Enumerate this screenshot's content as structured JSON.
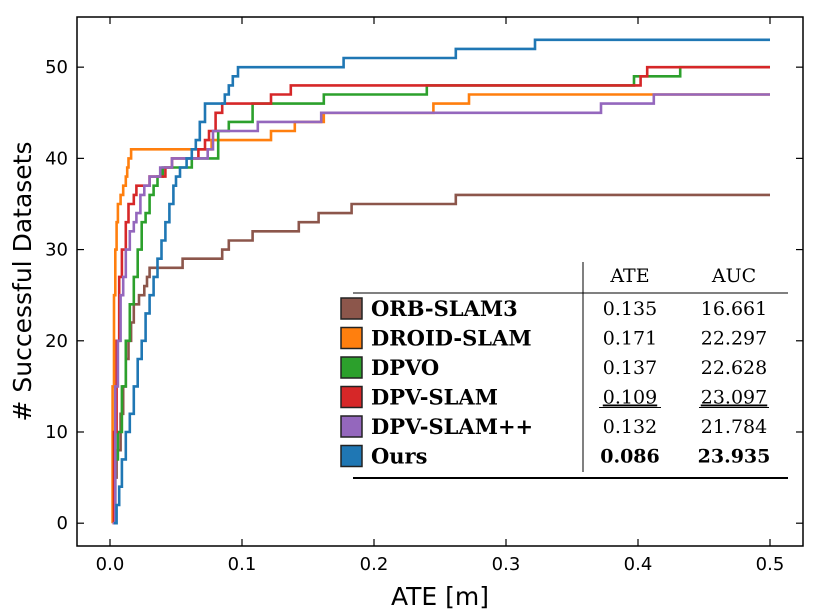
{
  "chart_data": {
    "type": "line",
    "step": true,
    "xlabel": "ATE [m]",
    "ylabel": "# Successful Datasets",
    "xlim": [
      -0.025,
      0.525
    ],
    "ylim": [
      -2.5,
      55.5
    ],
    "xticks": [
      "0.0",
      "0.1",
      "0.2",
      "0.3",
      "0.4",
      "0.5"
    ],
    "yticks": [
      "0",
      "10",
      "20",
      "30",
      "40",
      "50"
    ],
    "grid": false,
    "legend_position": "lower-right",
    "table": {
      "col_headers": [
        "ATE",
        "AUC"
      ]
    },
    "series": [
      {
        "name": "ORB-SLAM3",
        "color": "#8c564b",
        "ate": "0.135",
        "auc": "16.661",
        "ate_style": "normal",
        "auc_style": "normal",
        "points": [
          [
            0.002,
            0
          ],
          [
            0.003,
            5
          ],
          [
            0.005,
            8
          ],
          [
            0.008,
            12
          ],
          [
            0.01,
            15
          ],
          [
            0.012,
            18
          ],
          [
            0.014,
            20
          ],
          [
            0.016,
            22
          ],
          [
            0.018,
            24
          ],
          [
            0.022,
            25
          ],
          [
            0.026,
            26
          ],
          [
            0.028,
            27
          ],
          [
            0.03,
            28
          ],
          [
            0.05,
            28
          ],
          [
            0.055,
            29
          ],
          [
            0.08,
            29
          ],
          [
            0.085,
            30
          ],
          [
            0.09,
            31
          ],
          [
            0.105,
            31
          ],
          [
            0.108,
            32
          ],
          [
            0.14,
            32
          ],
          [
            0.143,
            33
          ],
          [
            0.155,
            33
          ],
          [
            0.158,
            34
          ],
          [
            0.18,
            34
          ],
          [
            0.183,
            35
          ],
          [
            0.26,
            35
          ],
          [
            0.262,
            36
          ],
          [
            0.5,
            36
          ]
        ]
      },
      {
        "name": "DROID-SLAM",
        "color": "#ff7f0e",
        "ate": "0.171",
        "auc": "22.297",
        "ate_style": "normal",
        "auc_style": "normal",
        "points": [
          [
            0.002,
            0
          ],
          [
            0.002,
            15
          ],
          [
            0.003,
            25
          ],
          [
            0.004,
            30
          ],
          [
            0.005,
            33
          ],
          [
            0.006,
            35
          ],
          [
            0.008,
            36
          ],
          [
            0.01,
            37
          ],
          [
            0.012,
            38
          ],
          [
            0.013,
            39
          ],
          [
            0.014,
            40
          ],
          [
            0.016,
            41
          ],
          [
            0.075,
            41
          ],
          [
            0.077,
            42
          ],
          [
            0.12,
            42
          ],
          [
            0.122,
            43
          ],
          [
            0.138,
            43
          ],
          [
            0.14,
            44
          ],
          [
            0.16,
            44
          ],
          [
            0.162,
            45
          ],
          [
            0.243,
            45
          ],
          [
            0.245,
            46
          ],
          [
            0.27,
            46
          ],
          [
            0.272,
            47
          ],
          [
            0.5,
            47
          ]
        ]
      },
      {
        "name": "DPVO",
        "color": "#2ca02c",
        "ate": "0.137",
        "auc": "22.628",
        "ate_style": "normal",
        "auc_style": "normal",
        "points": [
          [
            0.002,
            0
          ],
          [
            0.004,
            7
          ],
          [
            0.006,
            10
          ],
          [
            0.009,
            15
          ],
          [
            0.012,
            20
          ],
          [
            0.015,
            24
          ],
          [
            0.018,
            27
          ],
          [
            0.021,
            30
          ],
          [
            0.024,
            33
          ],
          [
            0.027,
            34
          ],
          [
            0.03,
            36
          ],
          [
            0.033,
            37
          ],
          [
            0.036,
            38
          ],
          [
            0.04,
            39
          ],
          [
            0.06,
            39
          ],
          [
            0.062,
            40
          ],
          [
            0.08,
            40
          ],
          [
            0.082,
            43
          ],
          [
            0.09,
            44
          ],
          [
            0.105,
            44
          ],
          [
            0.108,
            46
          ],
          [
            0.16,
            46
          ],
          [
            0.162,
            47
          ],
          [
            0.238,
            47
          ],
          [
            0.24,
            48
          ],
          [
            0.395,
            48
          ],
          [
            0.397,
            49
          ],
          [
            0.43,
            49
          ],
          [
            0.432,
            50
          ],
          [
            0.5,
            50
          ]
        ]
      },
      {
        "name": "DPV-SLAM",
        "color": "#d62728",
        "ate": "0.109",
        "auc": "23.097",
        "ate_style": "underline",
        "auc_style": "underline",
        "points": [
          [
            0.002,
            0
          ],
          [
            0.003,
            10
          ],
          [
            0.005,
            20
          ],
          [
            0.007,
            27
          ],
          [
            0.009,
            30
          ],
          [
            0.012,
            33
          ],
          [
            0.014,
            35
          ],
          [
            0.018,
            36
          ],
          [
            0.02,
            37
          ],
          [
            0.028,
            37
          ],
          [
            0.03,
            38
          ],
          [
            0.04,
            38
          ],
          [
            0.042,
            39
          ],
          [
            0.047,
            40
          ],
          [
            0.065,
            40
          ],
          [
            0.067,
            41
          ],
          [
            0.072,
            42
          ],
          [
            0.075,
            43
          ],
          [
            0.08,
            45
          ],
          [
            0.085,
            46
          ],
          [
            0.12,
            46
          ],
          [
            0.122,
            47
          ],
          [
            0.135,
            47
          ],
          [
            0.137,
            48
          ],
          [
            0.4,
            48
          ],
          [
            0.402,
            49
          ],
          [
            0.407,
            50
          ],
          [
            0.5,
            50
          ]
        ]
      },
      {
        "name": "DPV-SLAM++",
        "color": "#9467bd",
        "ate": "0.132",
        "auc": "21.784",
        "ate_style": "normal",
        "auc_style": "normal",
        "points": [
          [
            0.002,
            0
          ],
          [
            0.004,
            15
          ],
          [
            0.006,
            20
          ],
          [
            0.008,
            25
          ],
          [
            0.01,
            27
          ],
          [
            0.012,
            30
          ],
          [
            0.015,
            32
          ],
          [
            0.018,
            33
          ],
          [
            0.02,
            34
          ],
          [
            0.023,
            36
          ],
          [
            0.026,
            37
          ],
          [
            0.03,
            38
          ],
          [
            0.035,
            38
          ],
          [
            0.038,
            39
          ],
          [
            0.045,
            39
          ],
          [
            0.047,
            40
          ],
          [
            0.072,
            40
          ],
          [
            0.074,
            41
          ],
          [
            0.078,
            43
          ],
          [
            0.11,
            43
          ],
          [
            0.112,
            44
          ],
          [
            0.158,
            44
          ],
          [
            0.16,
            45
          ],
          [
            0.37,
            45
          ],
          [
            0.372,
            46
          ],
          [
            0.41,
            46
          ],
          [
            0.412,
            47
          ],
          [
            0.5,
            47
          ]
        ]
      },
      {
        "name": "Ours",
        "color": "#1f77b4",
        "ate": "0.086",
        "auc": "23.935",
        "ate_style": "bold",
        "auc_style": "bold",
        "points": [
          [
            0.003,
            0
          ],
          [
            0.005,
            2
          ],
          [
            0.007,
            4
          ],
          [
            0.009,
            7
          ],
          [
            0.012,
            10
          ],
          [
            0.015,
            12
          ],
          [
            0.018,
            15
          ],
          [
            0.021,
            18
          ],
          [
            0.024,
            20
          ],
          [
            0.027,
            23
          ],
          [
            0.03,
            25
          ],
          [
            0.033,
            27
          ],
          [
            0.036,
            29
          ],
          [
            0.039,
            31
          ],
          [
            0.042,
            33
          ],
          [
            0.045,
            35
          ],
          [
            0.048,
            37
          ],
          [
            0.05,
            38
          ],
          [
            0.053,
            39
          ],
          [
            0.058,
            40
          ],
          [
            0.062,
            41
          ],
          [
            0.065,
            42
          ],
          [
            0.068,
            44
          ],
          [
            0.072,
            46
          ],
          [
            0.085,
            46
          ],
          [
            0.087,
            47
          ],
          [
            0.09,
            48
          ],
          [
            0.093,
            49
          ],
          [
            0.097,
            50
          ],
          [
            0.175,
            50
          ],
          [
            0.177,
            51
          ],
          [
            0.26,
            51
          ],
          [
            0.262,
            52
          ],
          [
            0.32,
            52
          ],
          [
            0.322,
            53
          ],
          [
            0.5,
            53
          ]
        ]
      }
    ]
  }
}
